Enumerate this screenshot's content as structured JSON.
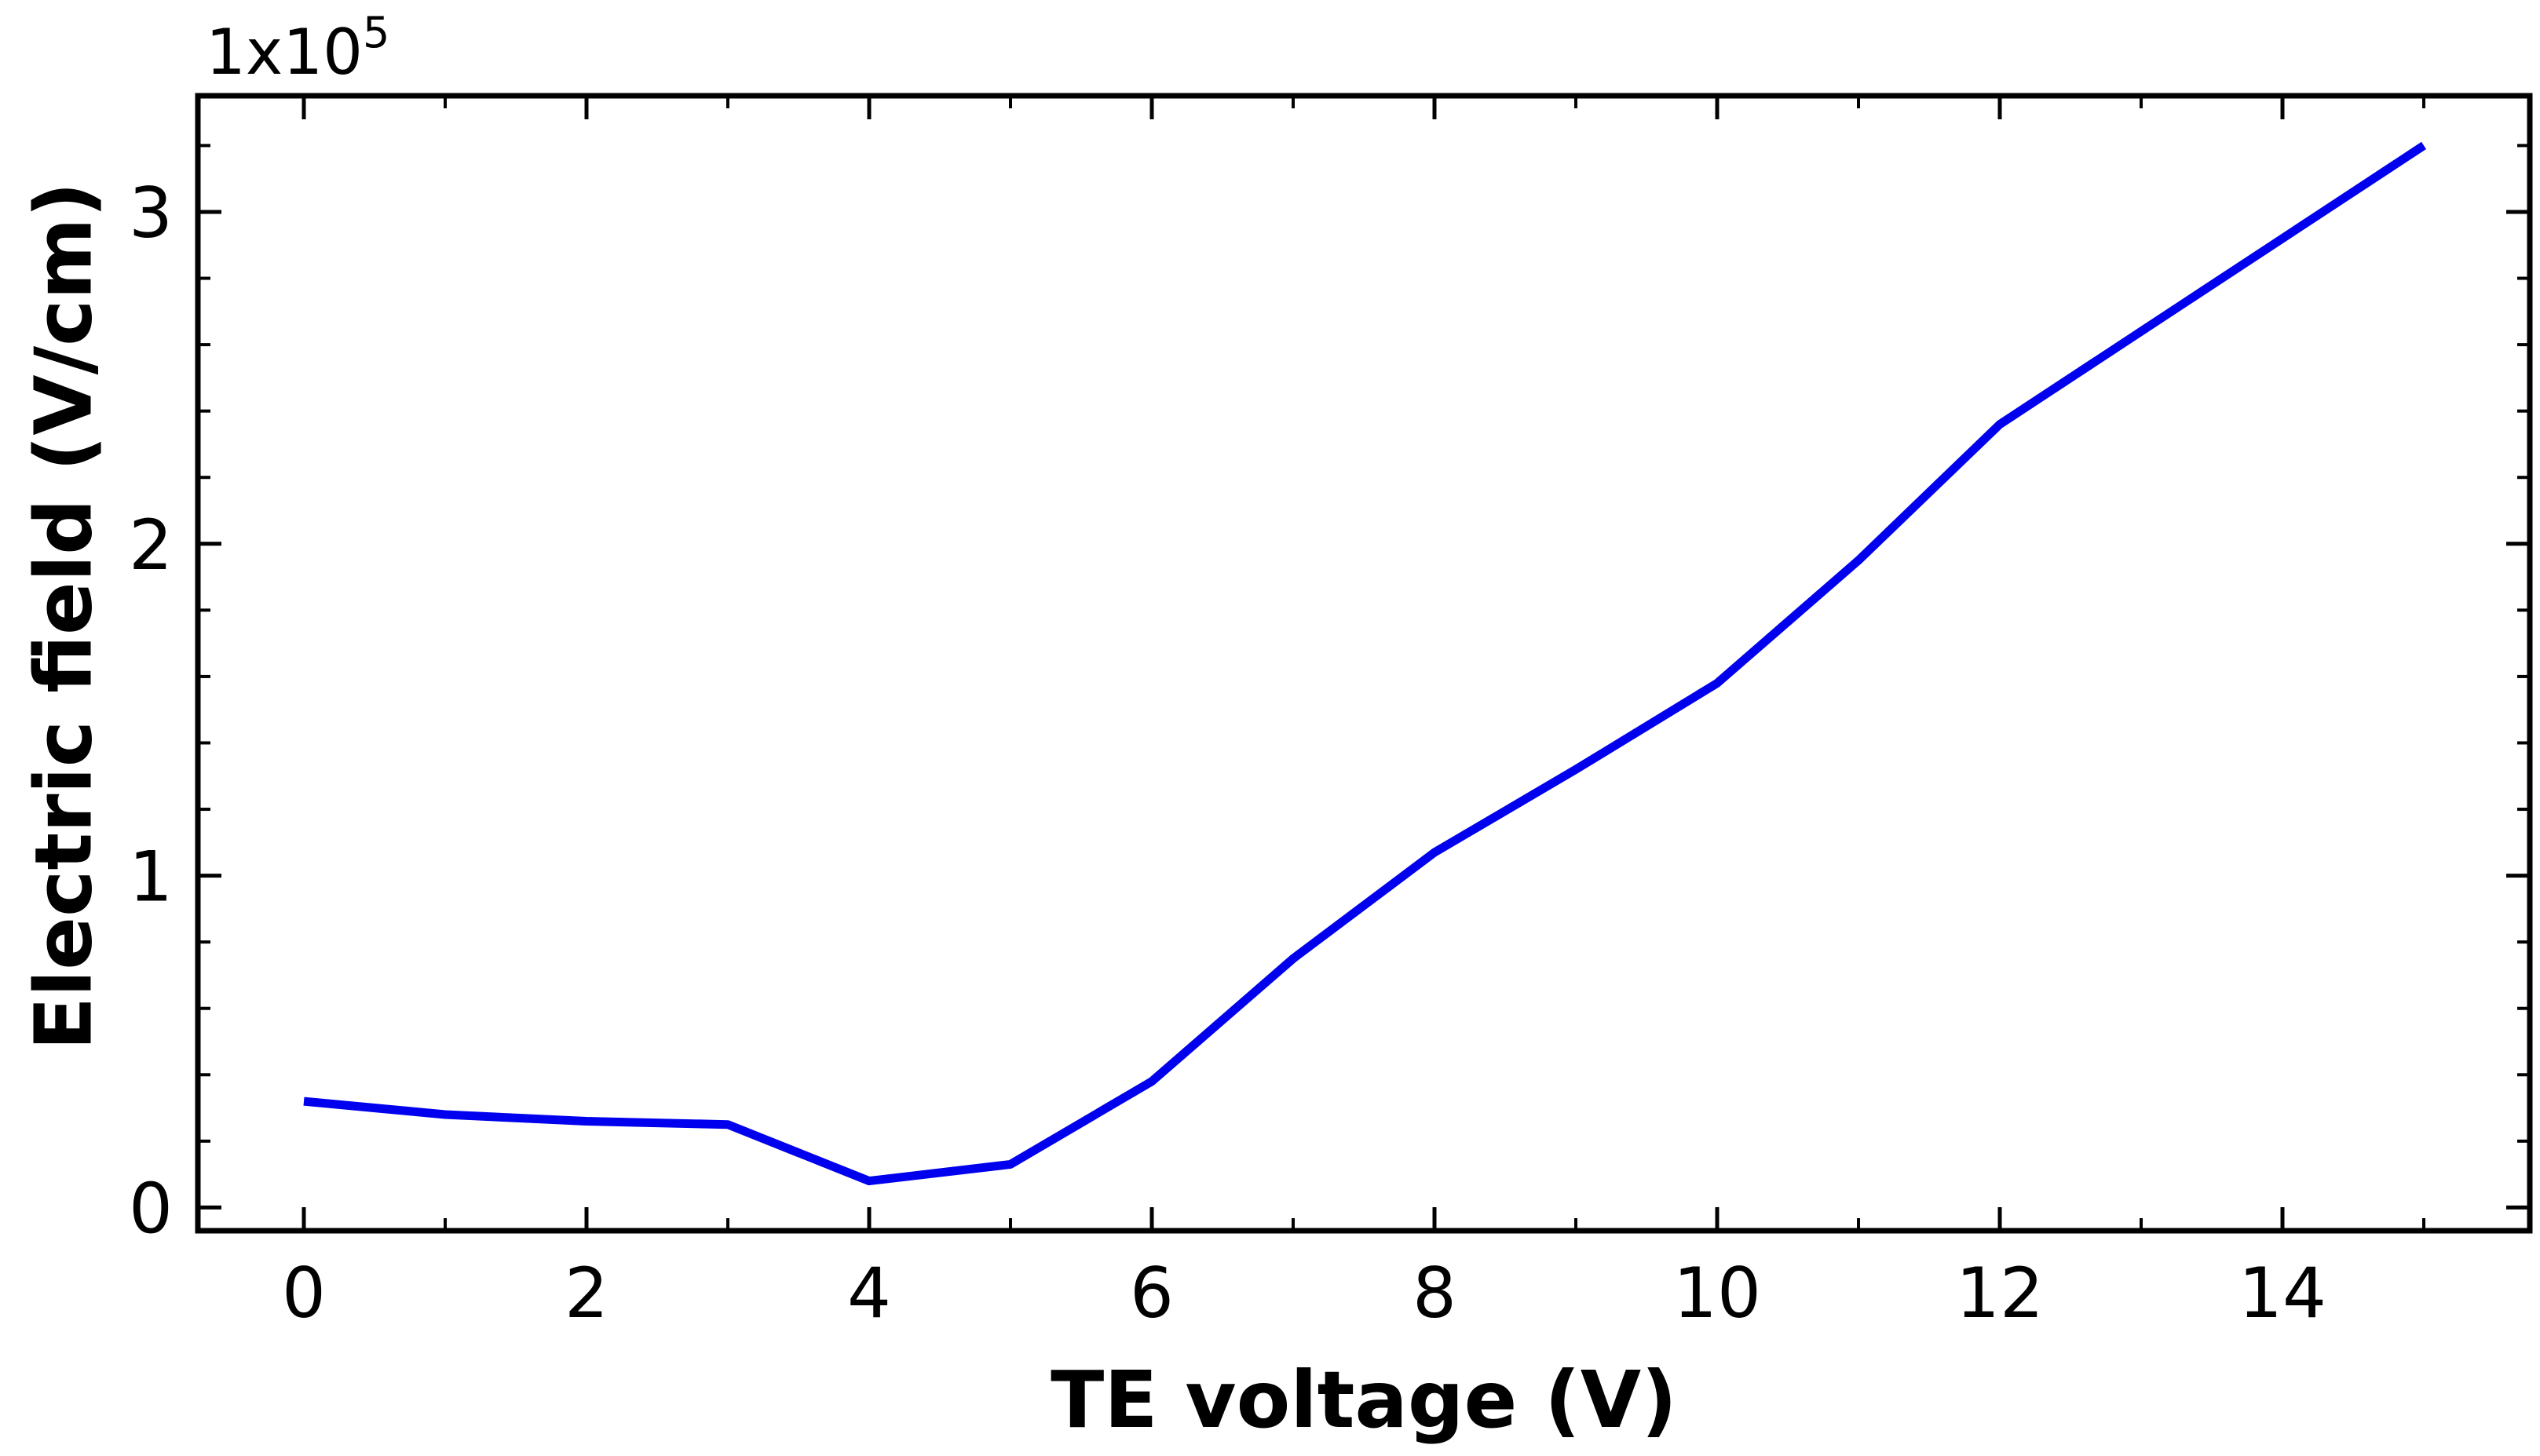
{
  "chart_data": {
    "type": "line",
    "title": "",
    "xlabel": "TE voltage (V)",
    "ylabel": "Electric field (V/cm)",
    "y_multiplier": {
      "base": "1x10",
      "exponent": "5"
    },
    "xlim": [
      -0.75,
      15.75
    ],
    "ylim": [
      -0.07,
      3.35
    ],
    "x_ticks": [
      0,
      2,
      4,
      6,
      8,
      10,
      12,
      14
    ],
    "x_tick_labels": [
      "0",
      "2",
      "4",
      "6",
      "8",
      "10",
      "12",
      "14"
    ],
    "y_ticks": [
      0,
      1,
      2,
      3
    ],
    "y_tick_labels": [
      "0",
      "1",
      "2",
      "3"
    ],
    "x_minor_step": 1,
    "y_minor_step": 0.2,
    "grid": false,
    "series": [
      {
        "color": "#0000ee",
        "x": [
          0,
          1,
          2,
          3,
          4,
          5,
          6,
          7,
          8,
          9,
          10,
          11,
          12,
          13,
          14,
          15
        ],
        "y": [
          0.32,
          0.28,
          0.26,
          0.25,
          0.08,
          0.13,
          0.38,
          0.75,
          1.07,
          1.32,
          1.58,
          1.95,
          2.36,
          2.64,
          2.92,
          3.2
        ]
      }
    ]
  }
}
